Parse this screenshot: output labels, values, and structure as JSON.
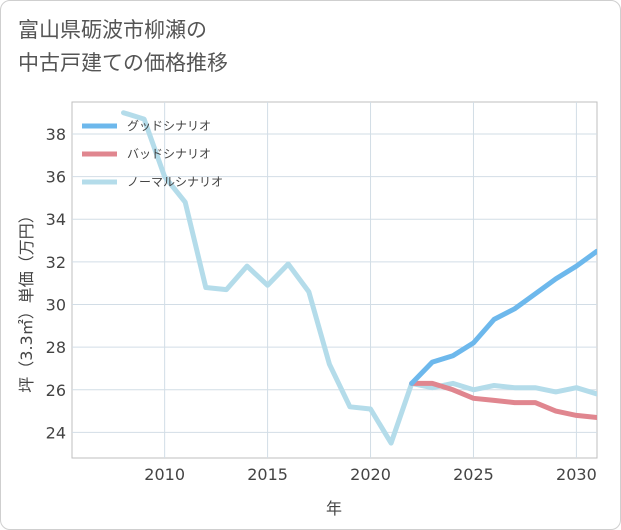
{
  "title": "富山県砺波市柳瀬の\n中古戸建ての価格推移",
  "chart_data": {
    "type": "line",
    "xlabel": "年",
    "ylabel": "坪（3.3㎡）単価（万円）",
    "xlim": [
      2005.5,
      2031
    ],
    "ylim": [
      22.8,
      39.5
    ],
    "xticks": [
      2010,
      2015,
      2020,
      2025,
      2030
    ],
    "yticks": [
      24,
      26,
      28,
      30,
      32,
      34,
      36,
      38
    ],
    "grid": true,
    "legend_position": "top-left",
    "series": [
      {
        "name": "グッドシナリオ",
        "color": "#6db8ec",
        "x": [
          2022,
          2023,
          2024,
          2025,
          2026,
          2027,
          2028,
          2029,
          2030,
          2031
        ],
        "y": [
          26.3,
          27.3,
          27.6,
          28.2,
          29.3,
          29.8,
          30.5,
          31.2,
          31.8,
          32.5
        ]
      },
      {
        "name": "バッドシナリオ",
        "color": "#e0868f",
        "x": [
          2022,
          2023,
          2024,
          2025,
          2026,
          2027,
          2028,
          2029,
          2030,
          2031
        ],
        "y": [
          26.3,
          26.3,
          26.0,
          25.6,
          25.5,
          25.4,
          25.4,
          25.0,
          24.8,
          24.7
        ]
      },
      {
        "name": "ノーマルシナリオ",
        "color": "#b4dcea",
        "x": [
          2008,
          2009,
          2010,
          2011,
          2012,
          2013,
          2014,
          2015,
          2016,
          2017,
          2018,
          2019,
          2020,
          2021,
          2022,
          2023,
          2024,
          2025,
          2026,
          2027,
          2028,
          2029,
          2030,
          2031
        ],
        "y": [
          39.0,
          38.7,
          36.0,
          34.8,
          30.8,
          30.7,
          31.8,
          30.9,
          31.9,
          30.6,
          27.2,
          25.2,
          25.1,
          23.5,
          26.3,
          26.1,
          26.3,
          26.0,
          26.2,
          26.1,
          26.1,
          25.9,
          26.1,
          25.8
        ]
      }
    ]
  }
}
